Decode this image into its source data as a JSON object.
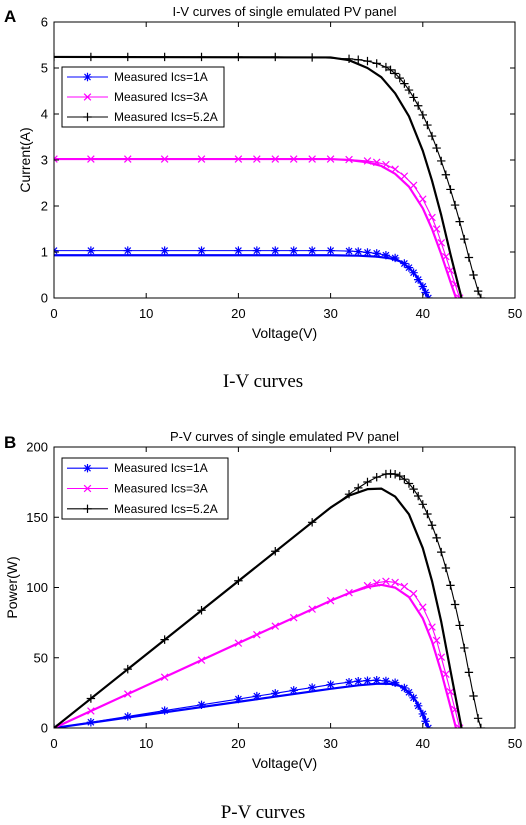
{
  "chart_data": [
    {
      "panel": "A",
      "type": "line",
      "title": "I-V curves of single emulated PV panel",
      "xlabel": "Voltage(V)",
      "ylabel": "Current(A)",
      "xlim": [
        0,
        50
      ],
      "ylim": [
        0,
        6
      ],
      "xticks": [
        0,
        10,
        20,
        30,
        40,
        50
      ],
      "yticks": [
        0,
        1,
        2,
        3,
        4,
        5,
        6
      ],
      "grid": false,
      "legend_position": "top-left",
      "caption": "I-V curves",
      "series": [
        {
          "name": "Measured Ics=1A",
          "color": "#0000ff",
          "marker": "*",
          "x": [
            0,
            4,
            8,
            12,
            16,
            20,
            22,
            24,
            26,
            28,
            30,
            32,
            33,
            34,
            35,
            36,
            37,
            38,
            38.5,
            39,
            39.5,
            40,
            40.3,
            40.6
          ],
          "y": [
            1.03,
            1.03,
            1.03,
            1.03,
            1.03,
            1.03,
            1.03,
            1.03,
            1.03,
            1.03,
            1.03,
            1.02,
            1.01,
            0.99,
            0.97,
            0.93,
            0.87,
            0.75,
            0.66,
            0.55,
            0.4,
            0.25,
            0.12,
            0.0
          ]
        },
        {
          "name": "",
          "color": "#0000ff",
          "marker": "none",
          "x": [
            0,
            30,
            33,
            35,
            36.5,
            37.5,
            38.5,
            39.3,
            40,
            40.6
          ],
          "y": [
            0.93,
            0.93,
            0.92,
            0.9,
            0.86,
            0.8,
            0.66,
            0.48,
            0.24,
            0.0
          ]
        },
        {
          "name": "Measured Ics=3A",
          "color": "#ff00ff",
          "marker": "x",
          "x": [
            0,
            4,
            8,
            12,
            16,
            20,
            22,
            24,
            26,
            28,
            30,
            32,
            34,
            35,
            36,
            37,
            38,
            39,
            40,
            41,
            41.5,
            42,
            42.5,
            43,
            43.5,
            44
          ],
          "y": [
            3.02,
            3.02,
            3.02,
            3.02,
            3.02,
            3.02,
            3.02,
            3.02,
            3.02,
            3.02,
            3.02,
            3.01,
            2.98,
            2.95,
            2.9,
            2.8,
            2.65,
            2.45,
            2.15,
            1.75,
            1.5,
            1.2,
            0.9,
            0.6,
            0.3,
            0.0
          ]
        },
        {
          "name": "",
          "color": "#ff00ff",
          "marker": "none",
          "x": [
            0,
            30,
            32,
            34,
            35.5,
            37,
            38.5,
            40,
            41,
            42,
            43,
            43.6
          ],
          "y": [
            3.02,
            3.02,
            3.0,
            2.95,
            2.87,
            2.7,
            2.42,
            1.95,
            1.5,
            0.95,
            0.35,
            0.0
          ]
        },
        {
          "name": "Measured Ics=5.2A",
          "color": "#000000",
          "marker": "+",
          "x": [
            0,
            4,
            8,
            12,
            16,
            20,
            24,
            28,
            32,
            33,
            34,
            35,
            36,
            36.5,
            37,
            37.5,
            38,
            38.5,
            39,
            39.5,
            40,
            40.5,
            41,
            41.5,
            42,
            42.5,
            43,
            43.5,
            44,
            44.5,
            45,
            45.5,
            46,
            46.3
          ],
          "y": [
            5.24,
            5.24,
            5.24,
            5.24,
            5.24,
            5.24,
            5.24,
            5.23,
            5.2,
            5.18,
            5.15,
            5.1,
            5.02,
            4.96,
            4.88,
            4.78,
            4.66,
            4.52,
            4.36,
            4.18,
            3.98,
            3.76,
            3.52,
            3.26,
            2.98,
            2.68,
            2.36,
            2.02,
            1.66,
            1.28,
            0.88,
            0.5,
            0.15,
            0.0
          ]
        },
        {
          "name": "",
          "color": "#000000",
          "marker": "none",
          "x": [
            0,
            30,
            32,
            34,
            35.5,
            37,
            38.5,
            40,
            41,
            42,
            43,
            44.2
          ],
          "y": [
            5.24,
            5.23,
            5.17,
            5.0,
            4.8,
            4.45,
            3.95,
            3.2,
            2.55,
            1.8,
            0.95,
            0.0
          ]
        }
      ]
    },
    {
      "panel": "B",
      "type": "line",
      "title": "P-V curves of single emulated PV panel",
      "xlabel": "Voltage(V)",
      "ylabel": "Power(W)",
      "xlim": [
        0,
        50
      ],
      "ylim": [
        0,
        200
      ],
      "xticks": [
        0,
        10,
        20,
        30,
        40,
        50
      ],
      "yticks": [
        0,
        50,
        100,
        150,
        200
      ],
      "grid": false,
      "legend_position": "top-left",
      "caption": "P-V curves",
      "series": [
        {
          "name": "Measured Ics=1A",
          "color": "#0000ff",
          "marker": "*",
          "x": [
            0,
            4,
            8,
            12,
            16,
            20,
            22,
            24,
            26,
            28,
            30,
            32,
            33,
            34,
            35,
            36,
            37,
            38,
            38.5,
            39,
            39.5,
            40,
            40.3,
            40.6
          ],
          "y": [
            0,
            4.1,
            8.2,
            12.4,
            16.5,
            20.6,
            22.7,
            24.7,
            26.8,
            28.8,
            30.9,
            32.6,
            33.3,
            33.7,
            34.0,
            33.5,
            32.2,
            28.5,
            25.4,
            21.5,
            15.8,
            10.0,
            4.8,
            0.0
          ]
        },
        {
          "name": "",
          "color": "#0000ff",
          "marker": "none",
          "x": [
            0,
            30,
            33,
            35,
            36.5,
            37.5,
            38.5,
            39.3,
            40,
            40.6
          ],
          "y": [
            0,
            27.9,
            30.4,
            31.5,
            31.4,
            30.0,
            25.4,
            18.9,
            9.6,
            0.0
          ]
        },
        {
          "name": "Measured Ics=3A",
          "color": "#ff00ff",
          "marker": "x",
          "x": [
            0,
            4,
            8,
            12,
            16,
            20,
            22,
            24,
            26,
            28,
            30,
            32,
            34,
            35,
            36,
            37,
            38,
            39,
            40,
            41,
            41.5,
            42,
            42.5,
            43,
            43.5,
            44
          ],
          "y": [
            0,
            12.1,
            24.2,
            36.2,
            48.3,
            60.4,
            66.4,
            72.5,
            78.5,
            84.6,
            90.6,
            96.3,
            101.3,
            103.3,
            104.4,
            103.6,
            100.7,
            95.6,
            86.0,
            71.8,
            62.3,
            50.4,
            38.3,
            25.8,
            13.1,
            0.0
          ]
        },
        {
          "name": "",
          "color": "#ff00ff",
          "marker": "none",
          "x": [
            0,
            30,
            32,
            34,
            35.5,
            37,
            38.5,
            40,
            41,
            42,
            43,
            43.6
          ],
          "y": [
            0,
            90.6,
            96.0,
            100.3,
            101.9,
            99.9,
            93.2,
            78.0,
            61.5,
            39.9,
            15.1,
            0.0
          ]
        },
        {
          "name": "Measured Ics=5.2A",
          "color": "#000000",
          "marker": "+",
          "x": [
            0,
            4,
            8,
            12,
            16,
            20,
            24,
            28,
            32,
            33,
            34,
            35,
            36,
            36.5,
            37,
            37.5,
            38,
            38.5,
            39,
            39.5,
            40,
            40.5,
            41,
            41.5,
            42,
            42.5,
            43,
            43.5,
            44,
            44.5,
            45,
            45.5,
            46,
            46.3
          ],
          "y": [
            0,
            21.0,
            41.9,
            62.9,
            83.8,
            104.8,
            125.8,
            146.4,
            166.4,
            170.9,
            175.1,
            178.5,
            180.7,
            181.0,
            180.6,
            179.3,
            177.1,
            174.0,
            170.0,
            165.1,
            159.2,
            152.3,
            144.3,
            135.3,
            125.2,
            113.9,
            101.5,
            87.9,
            73.0,
            57.0,
            39.6,
            22.8,
            6.9,
            0.0
          ]
        },
        {
          "name": "",
          "color": "#000000",
          "marker": "none",
          "x": [
            0,
            30,
            32,
            34,
            35.5,
            37,
            38.5,
            40,
            41,
            42,
            43,
            44.2
          ],
          "y": [
            0,
            156.9,
            165.4,
            170.0,
            170.4,
            164.7,
            152.1,
            128.0,
            104.6,
            75.6,
            40.9,
            0.0
          ]
        }
      ]
    }
  ]
}
